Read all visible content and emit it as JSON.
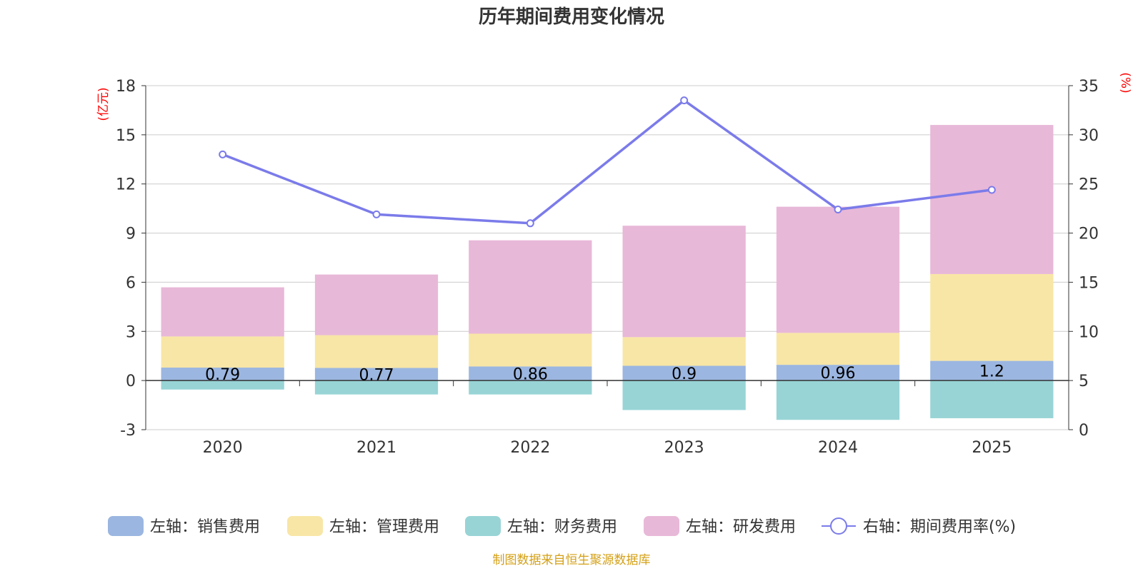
{
  "chart_data": {
    "type": "bar",
    "stacked": true,
    "title": "历年期间费用变化情况",
    "categories": [
      "2020",
      "2021",
      "2022",
      "2023",
      "2024",
      "2025"
    ],
    "left_axis": {
      "unit": "(亿元)",
      "min": -3,
      "max": 18,
      "ticks": [
        -3,
        0,
        3,
        6,
        9,
        12,
        15,
        18
      ]
    },
    "right_axis": {
      "unit": "(%)",
      "min": 0,
      "max": 35,
      "ticks": [
        0,
        5,
        10,
        15,
        20,
        25,
        30,
        35
      ]
    },
    "series": [
      {
        "name": "左轴：销售费用",
        "axis": "left",
        "color": "#9bb6e0",
        "values": [
          0.79,
          0.77,
          0.86,
          0.9,
          0.96,
          1.2
        ],
        "labels": [
          "0.79",
          "0.77",
          "0.86",
          "0.9",
          "0.96",
          "1.2"
        ]
      },
      {
        "name": "左轴：管理费用",
        "axis": "left",
        "color": "#f8e6a6",
        "values": [
          1.9,
          2.0,
          2.0,
          1.75,
          1.95,
          5.3
        ]
      },
      {
        "name": "左轴：财务费用",
        "axis": "left",
        "color": "#98d4d6",
        "values": [
          -0.55,
          -0.85,
          -0.85,
          -1.8,
          -2.4,
          -2.3
        ]
      },
      {
        "name": "左轴：研发费用",
        "axis": "left",
        "color": "#e8b8d8",
        "values": [
          3.0,
          3.7,
          5.7,
          6.8,
          7.7,
          9.1
        ]
      },
      {
        "name": "右轴：期间费用率(%)",
        "axis": "right",
        "type": "line",
        "color": "#7b7bea",
        "values": [
          28.0,
          21.9,
          21.0,
          33.5,
          22.4,
          24.4
        ]
      }
    ],
    "legend_position": "bottom",
    "grid": true
  },
  "source": "制图数据来自恒生聚源数据库"
}
